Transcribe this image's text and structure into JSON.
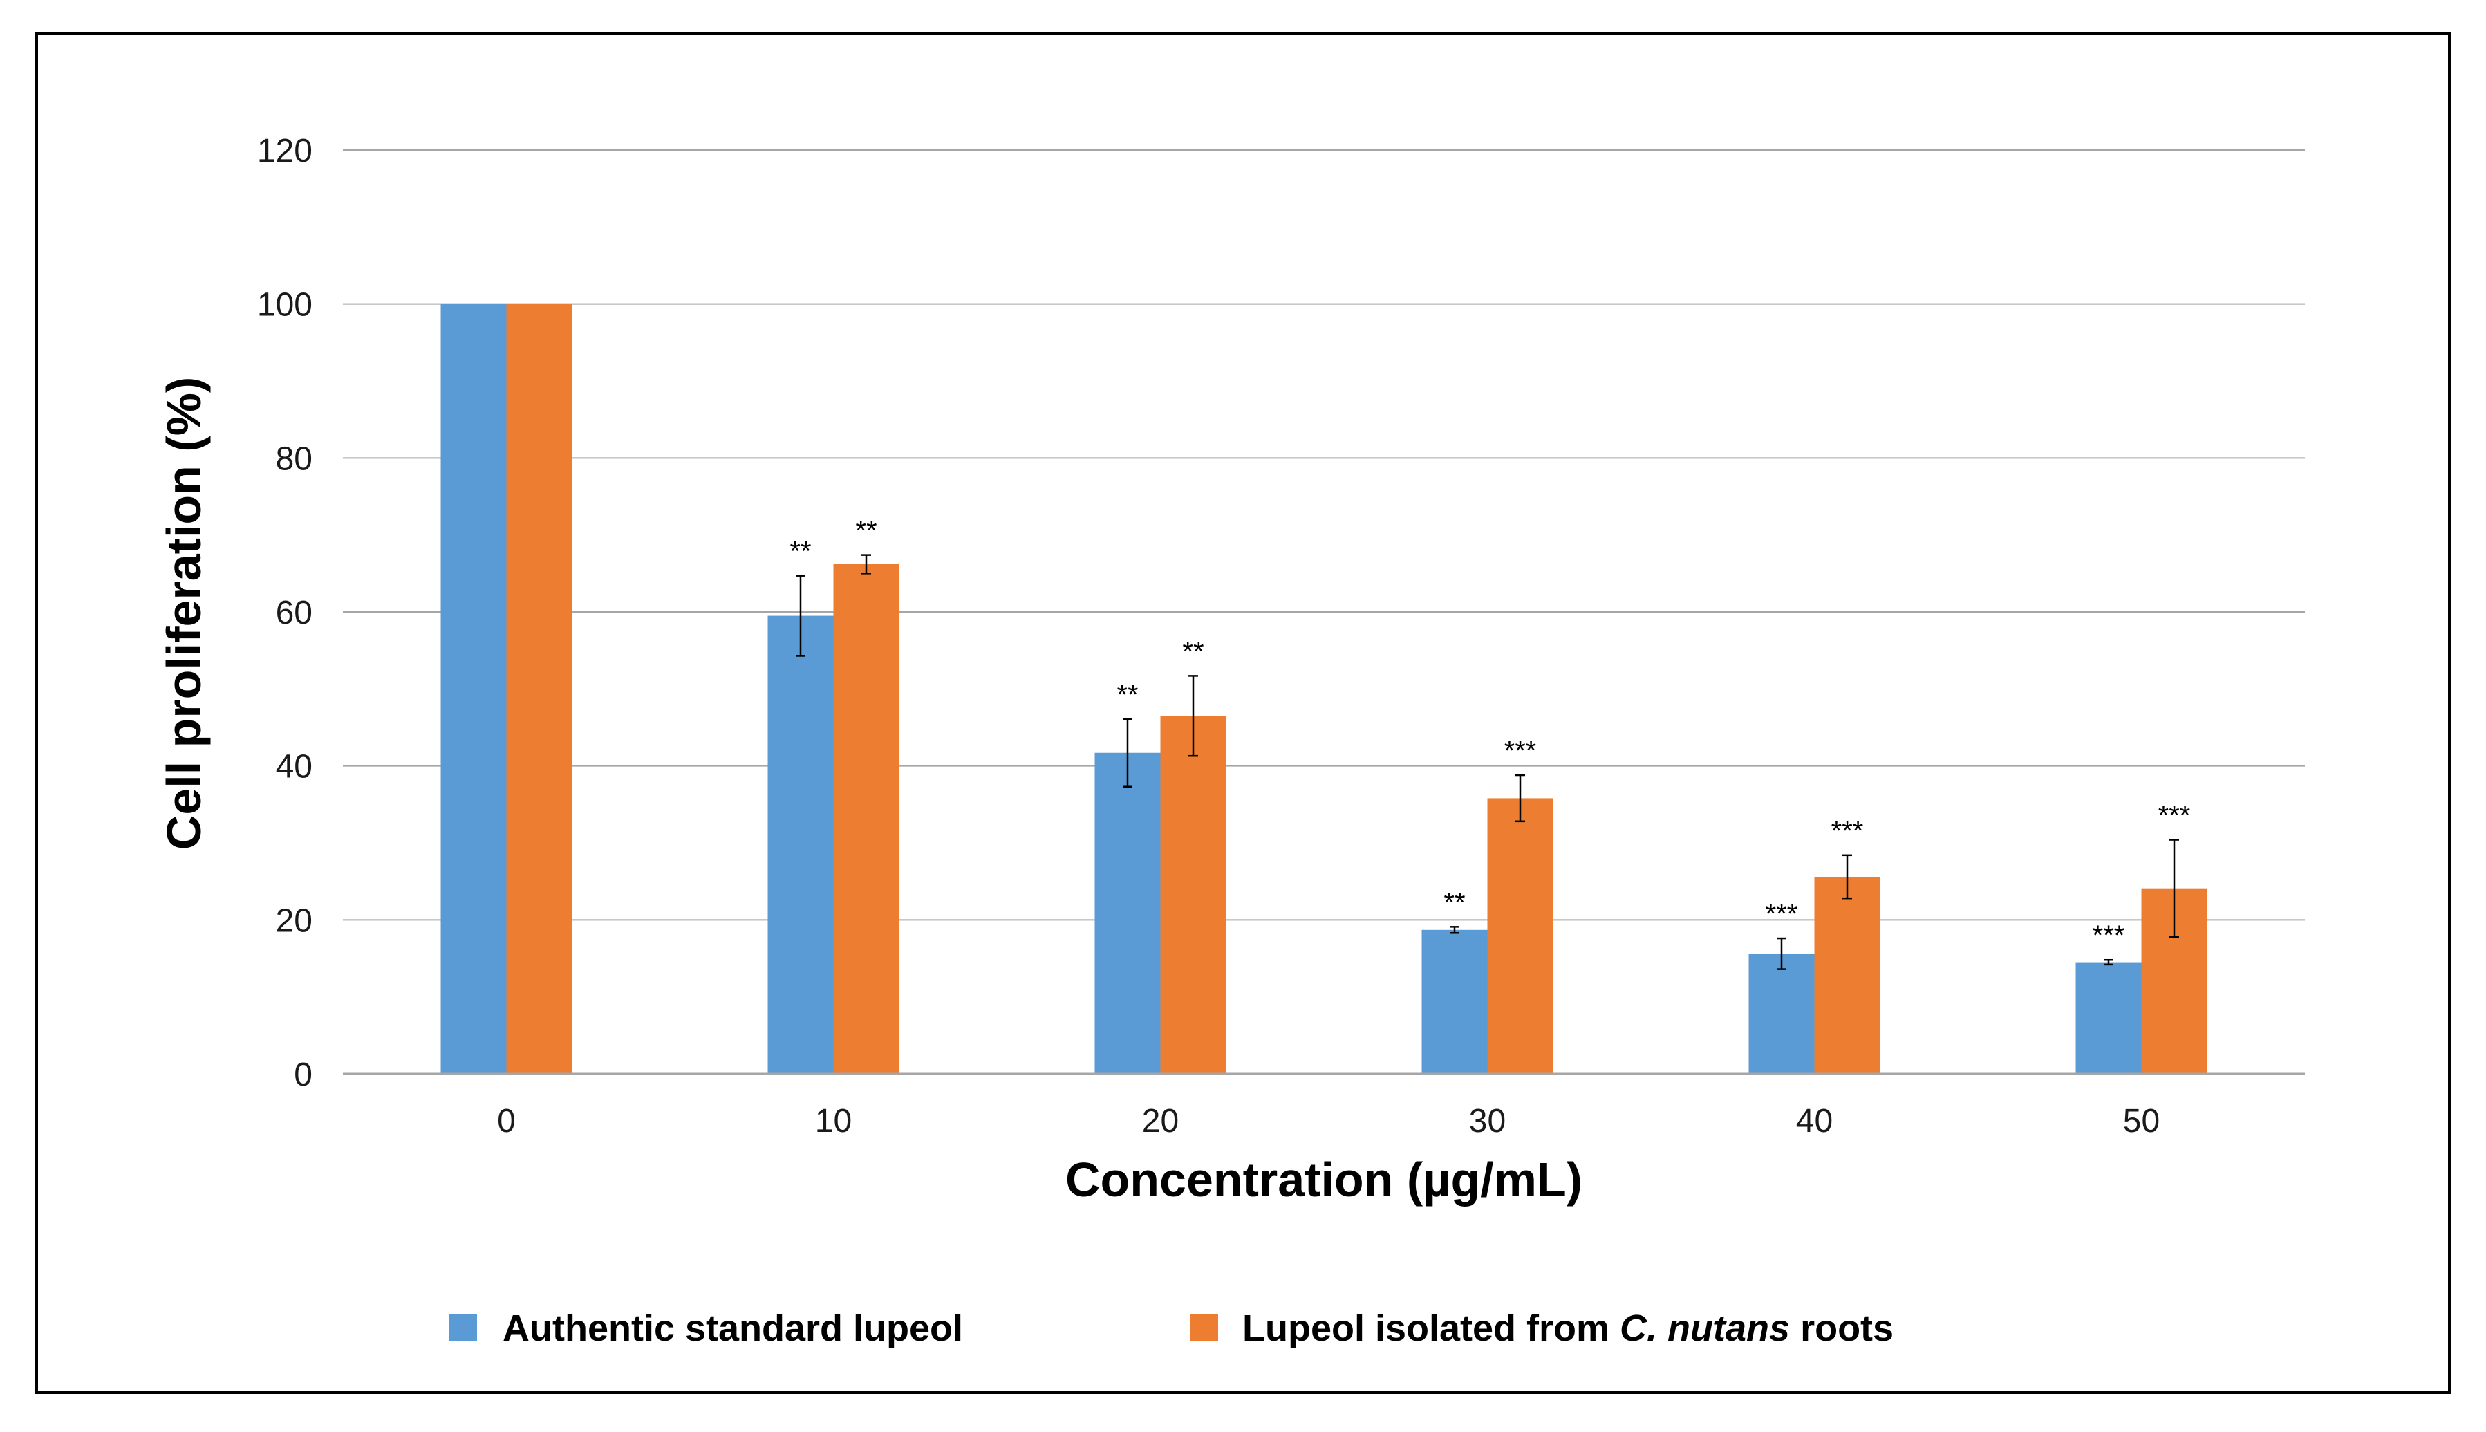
{
  "chart_data": {
    "type": "bar",
    "title": "",
    "xlabel": "Concentration (µg/mL)",
    "ylabel": "Cell proliferation (%)",
    "ylim": [
      0,
      120
    ],
    "yticks": [
      0,
      20,
      40,
      60,
      80,
      100,
      120
    ],
    "categories": [
      "0",
      "10",
      "20",
      "30",
      "40",
      "50"
    ],
    "grid": true,
    "legend_position": "bottom",
    "series": [
      {
        "name": "Authentic standard lupeol",
        "legend_parts": [
          "Authentic standard lupeol"
        ],
        "color": "#5B9BD5",
        "values": [
          100,
          59.5,
          41.7,
          18.7,
          15.6,
          14.5
        ],
        "errors": [
          0,
          5.2,
          4.4,
          0.4,
          2.0,
          0.3
        ],
        "significance": [
          "",
          "**",
          "**",
          "**",
          "***",
          "***"
        ]
      },
      {
        "name": "Lupeol isolated from C. nutans roots",
        "legend_parts": [
          "Lupeol isolated from ",
          "C. nutans",
          " roots"
        ],
        "color": "#ED7D31",
        "values": [
          100,
          66.2,
          46.5,
          35.8,
          25.6,
          24.1
        ],
        "errors": [
          0,
          1.2,
          5.2,
          3.0,
          2.8,
          6.3
        ],
        "significance": [
          "",
          "**",
          "**",
          "***",
          "***",
          "***"
        ]
      }
    ]
  }
}
